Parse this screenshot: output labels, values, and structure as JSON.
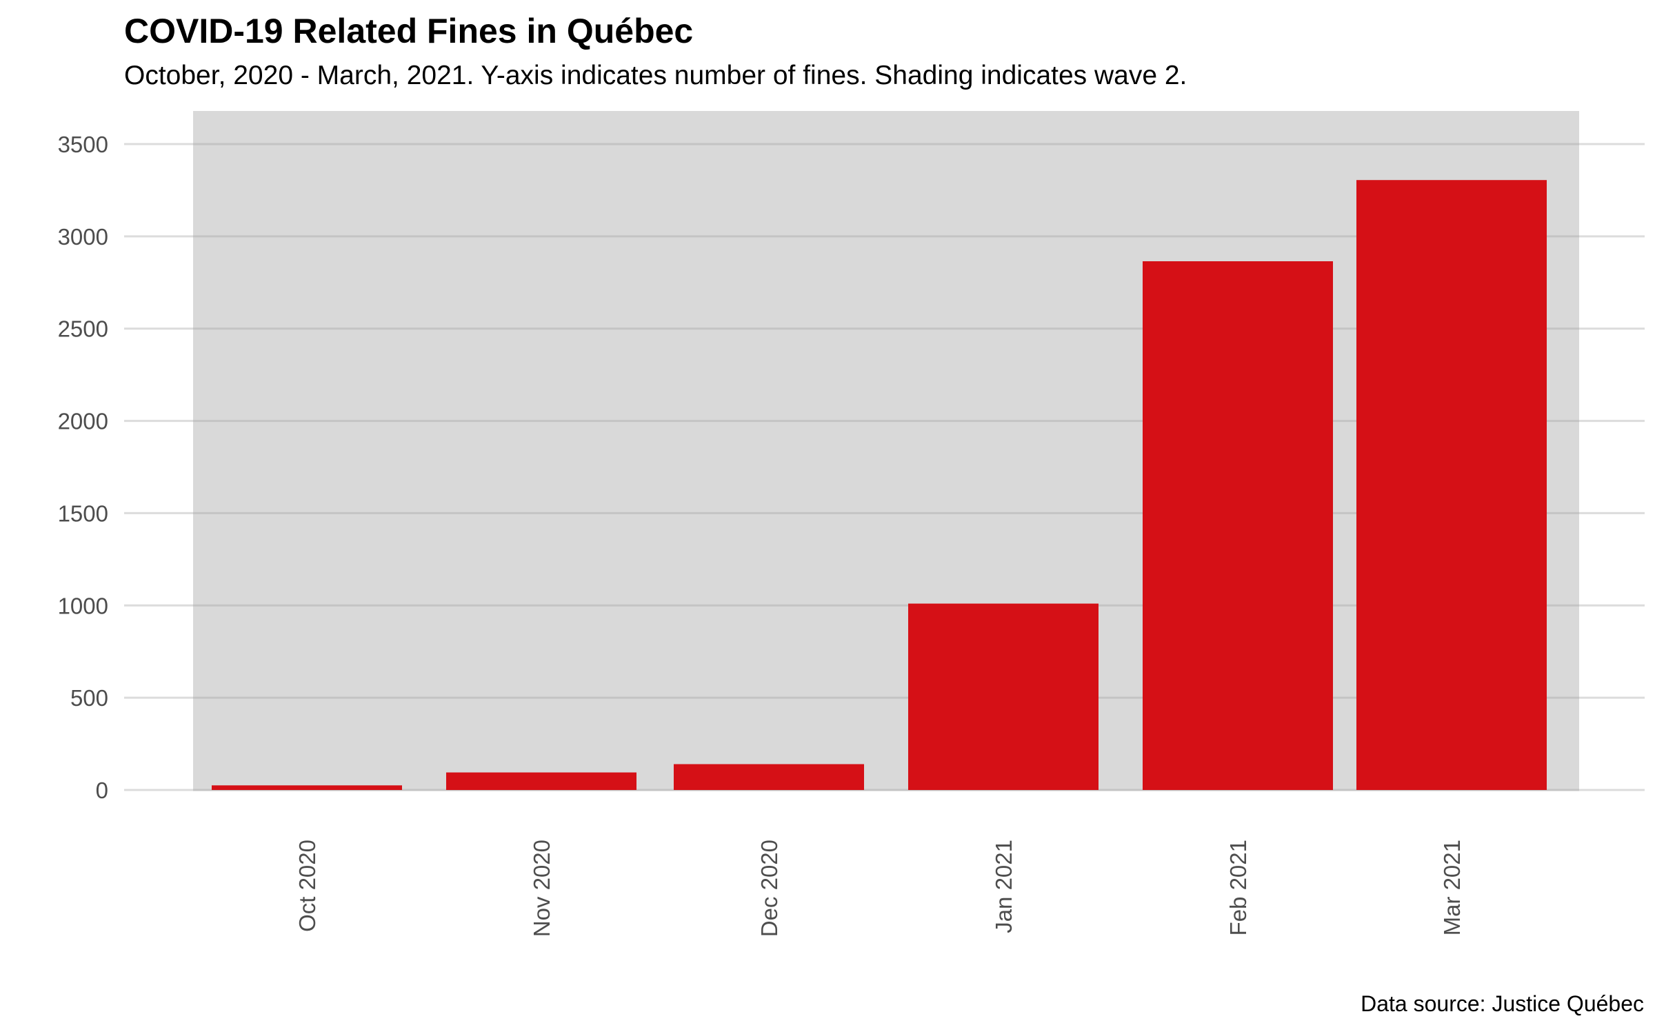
{
  "chart_data": {
    "type": "bar",
    "title": "COVID-19 Related Fines in Québec",
    "subtitle": "October, 2020 - March, 2021. Y-axis indicates number of fines. Shading indicates wave 2.",
    "caption": "Data source: Justice Québec",
    "xlabel": "",
    "ylabel": "",
    "categories": [
      "Oct 2020",
      "Nov 2020",
      "Dec 2020",
      "Jan 2021",
      "Feb 2021",
      "Mar 2021"
    ],
    "values": [
      25,
      95,
      140,
      1010,
      2865,
      3305
    ],
    "ylim": [
      0,
      3650
    ],
    "yticks": [
      0,
      500,
      1000,
      1500,
      2000,
      2500,
      3000,
      3500
    ],
    "ytick_labels": [
      "0",
      "500",
      "1000",
      "1500",
      "2000",
      "2500",
      "3000",
      "3500"
    ],
    "shaded_region": {
      "label": "wave 2",
      "from": "Oct 2020",
      "to": "Mar 2021"
    },
    "grid": true,
    "colors": {
      "bar": "#D51016",
      "shading": "#D9D9D9",
      "grid": "#DCDCDC",
      "grid_on_shading": "#C4C4C4",
      "tick_label": "#4D4D4D"
    }
  }
}
